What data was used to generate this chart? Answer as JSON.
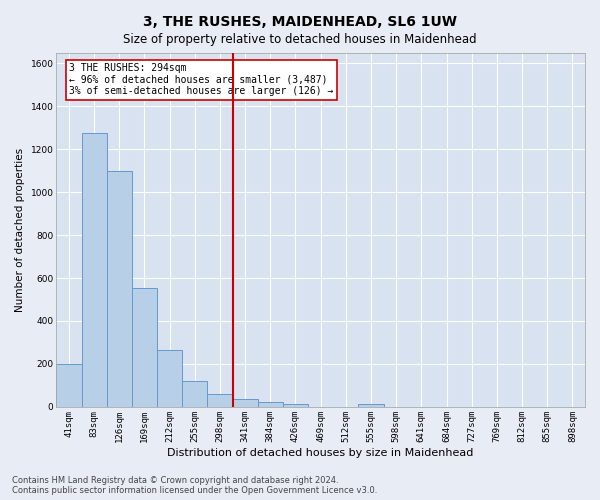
{
  "title": "3, THE RUSHES, MAIDENHEAD, SL6 1UW",
  "subtitle": "Size of property relative to detached houses in Maidenhead",
  "xlabel": "Distribution of detached houses by size in Maidenhead",
  "ylabel": "Number of detached properties",
  "footer_line1": "Contains HM Land Registry data © Crown copyright and database right 2024.",
  "footer_line2": "Contains public sector information licensed under the Open Government Licence v3.0.",
  "bar_labels": [
    "41sqm",
    "83sqm",
    "126sqm",
    "169sqm",
    "212sqm",
    "255sqm",
    "298sqm",
    "341sqm",
    "384sqm",
    "426sqm",
    "469sqm",
    "512sqm",
    "555sqm",
    "598sqm",
    "641sqm",
    "684sqm",
    "727sqm",
    "769sqm",
    "812sqm",
    "855sqm",
    "898sqm"
  ],
  "bar_values": [
    200,
    1275,
    1100,
    555,
    265,
    120,
    60,
    35,
    25,
    15,
    0,
    0,
    15,
    0,
    0,
    0,
    0,
    0,
    0,
    0,
    0
  ],
  "bar_color": "#b8cfe8",
  "bar_edge_color": "#6699cc",
  "vline_x_index": 6,
  "vline_color": "#cc0000",
  "annotation_text": "3 THE RUSHES: 294sqm\n← 96% of detached houses are smaller (3,487)\n3% of semi-detached houses are larger (126) →",
  "annotation_box_color": "#ffffff",
  "annotation_box_edge": "#cc0000",
  "ylim": [
    0,
    1650
  ],
  "yticks": [
    0,
    200,
    400,
    600,
    800,
    1000,
    1200,
    1400,
    1600
  ],
  "bg_color": "#e8edf5",
  "plot_bg_color": "#d8e2f0",
  "grid_color": "#ffffff",
  "title_fontsize": 10,
  "subtitle_fontsize": 8.5,
  "axis_label_fontsize": 7.5,
  "tick_fontsize": 6.5,
  "annotation_fontsize": 7,
  "footer_fontsize": 6
}
